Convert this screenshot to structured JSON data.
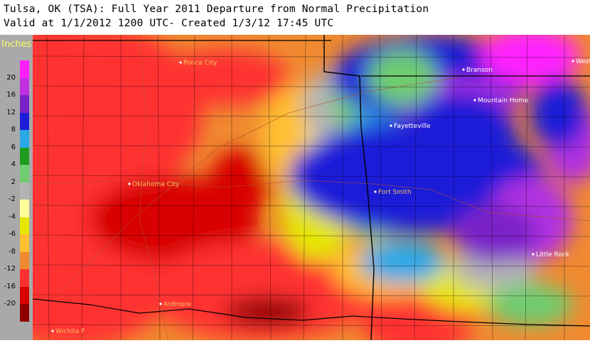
{
  "header": {
    "line1": "Tulsa, OK (TSA): Full Year 2011 Departure from Normal Precipitation",
    "line2": "Valid at 1/1/2012 1200 UTC- Created 1/3/12 17:45 UTC"
  },
  "legend": {
    "title": "Inches",
    "bins": [
      {
        "label": "20",
        "color": "#ff20ff"
      },
      {
        "label": "16",
        "color": "#c030e0"
      },
      {
        "label": "12",
        "color": "#7a22c8"
      },
      {
        "label": "8",
        "color": "#1e1ed8"
      },
      {
        "label": "6",
        "color": "#2aa8e8"
      },
      {
        "label": "4",
        "color": "#1e9a1e"
      },
      {
        "label": "2",
        "color": "#6fcc6f"
      },
      {
        "label": "-2",
        "color": "#b4b4b4"
      },
      {
        "label": "-4",
        "color": "#ffff9a"
      },
      {
        "label": "-6",
        "color": "#e6e600"
      },
      {
        "label": "-8",
        "color": "#ffc030"
      },
      {
        "label": "-12",
        "color": "#f08a30"
      },
      {
        "label": "-16",
        "color": "#ff3030"
      },
      {
        "label": "-20",
        "color": "#d80000"
      },
      {
        "label": "",
        "color": "#900000"
      }
    ]
  },
  "cities": {
    "ponca_city": "Ponca City",
    "fayetteville": "Fayetteville",
    "branson": "Branson",
    "mountain_home": "Mountain Home",
    "west_plains": "West",
    "oklahoma_city": "Oklahoma City",
    "fort_smith": "Fort Smith",
    "little_rock": "Little Rock",
    "ardmore": "Ardmore",
    "wichita_falls": "Wichita F"
  }
}
